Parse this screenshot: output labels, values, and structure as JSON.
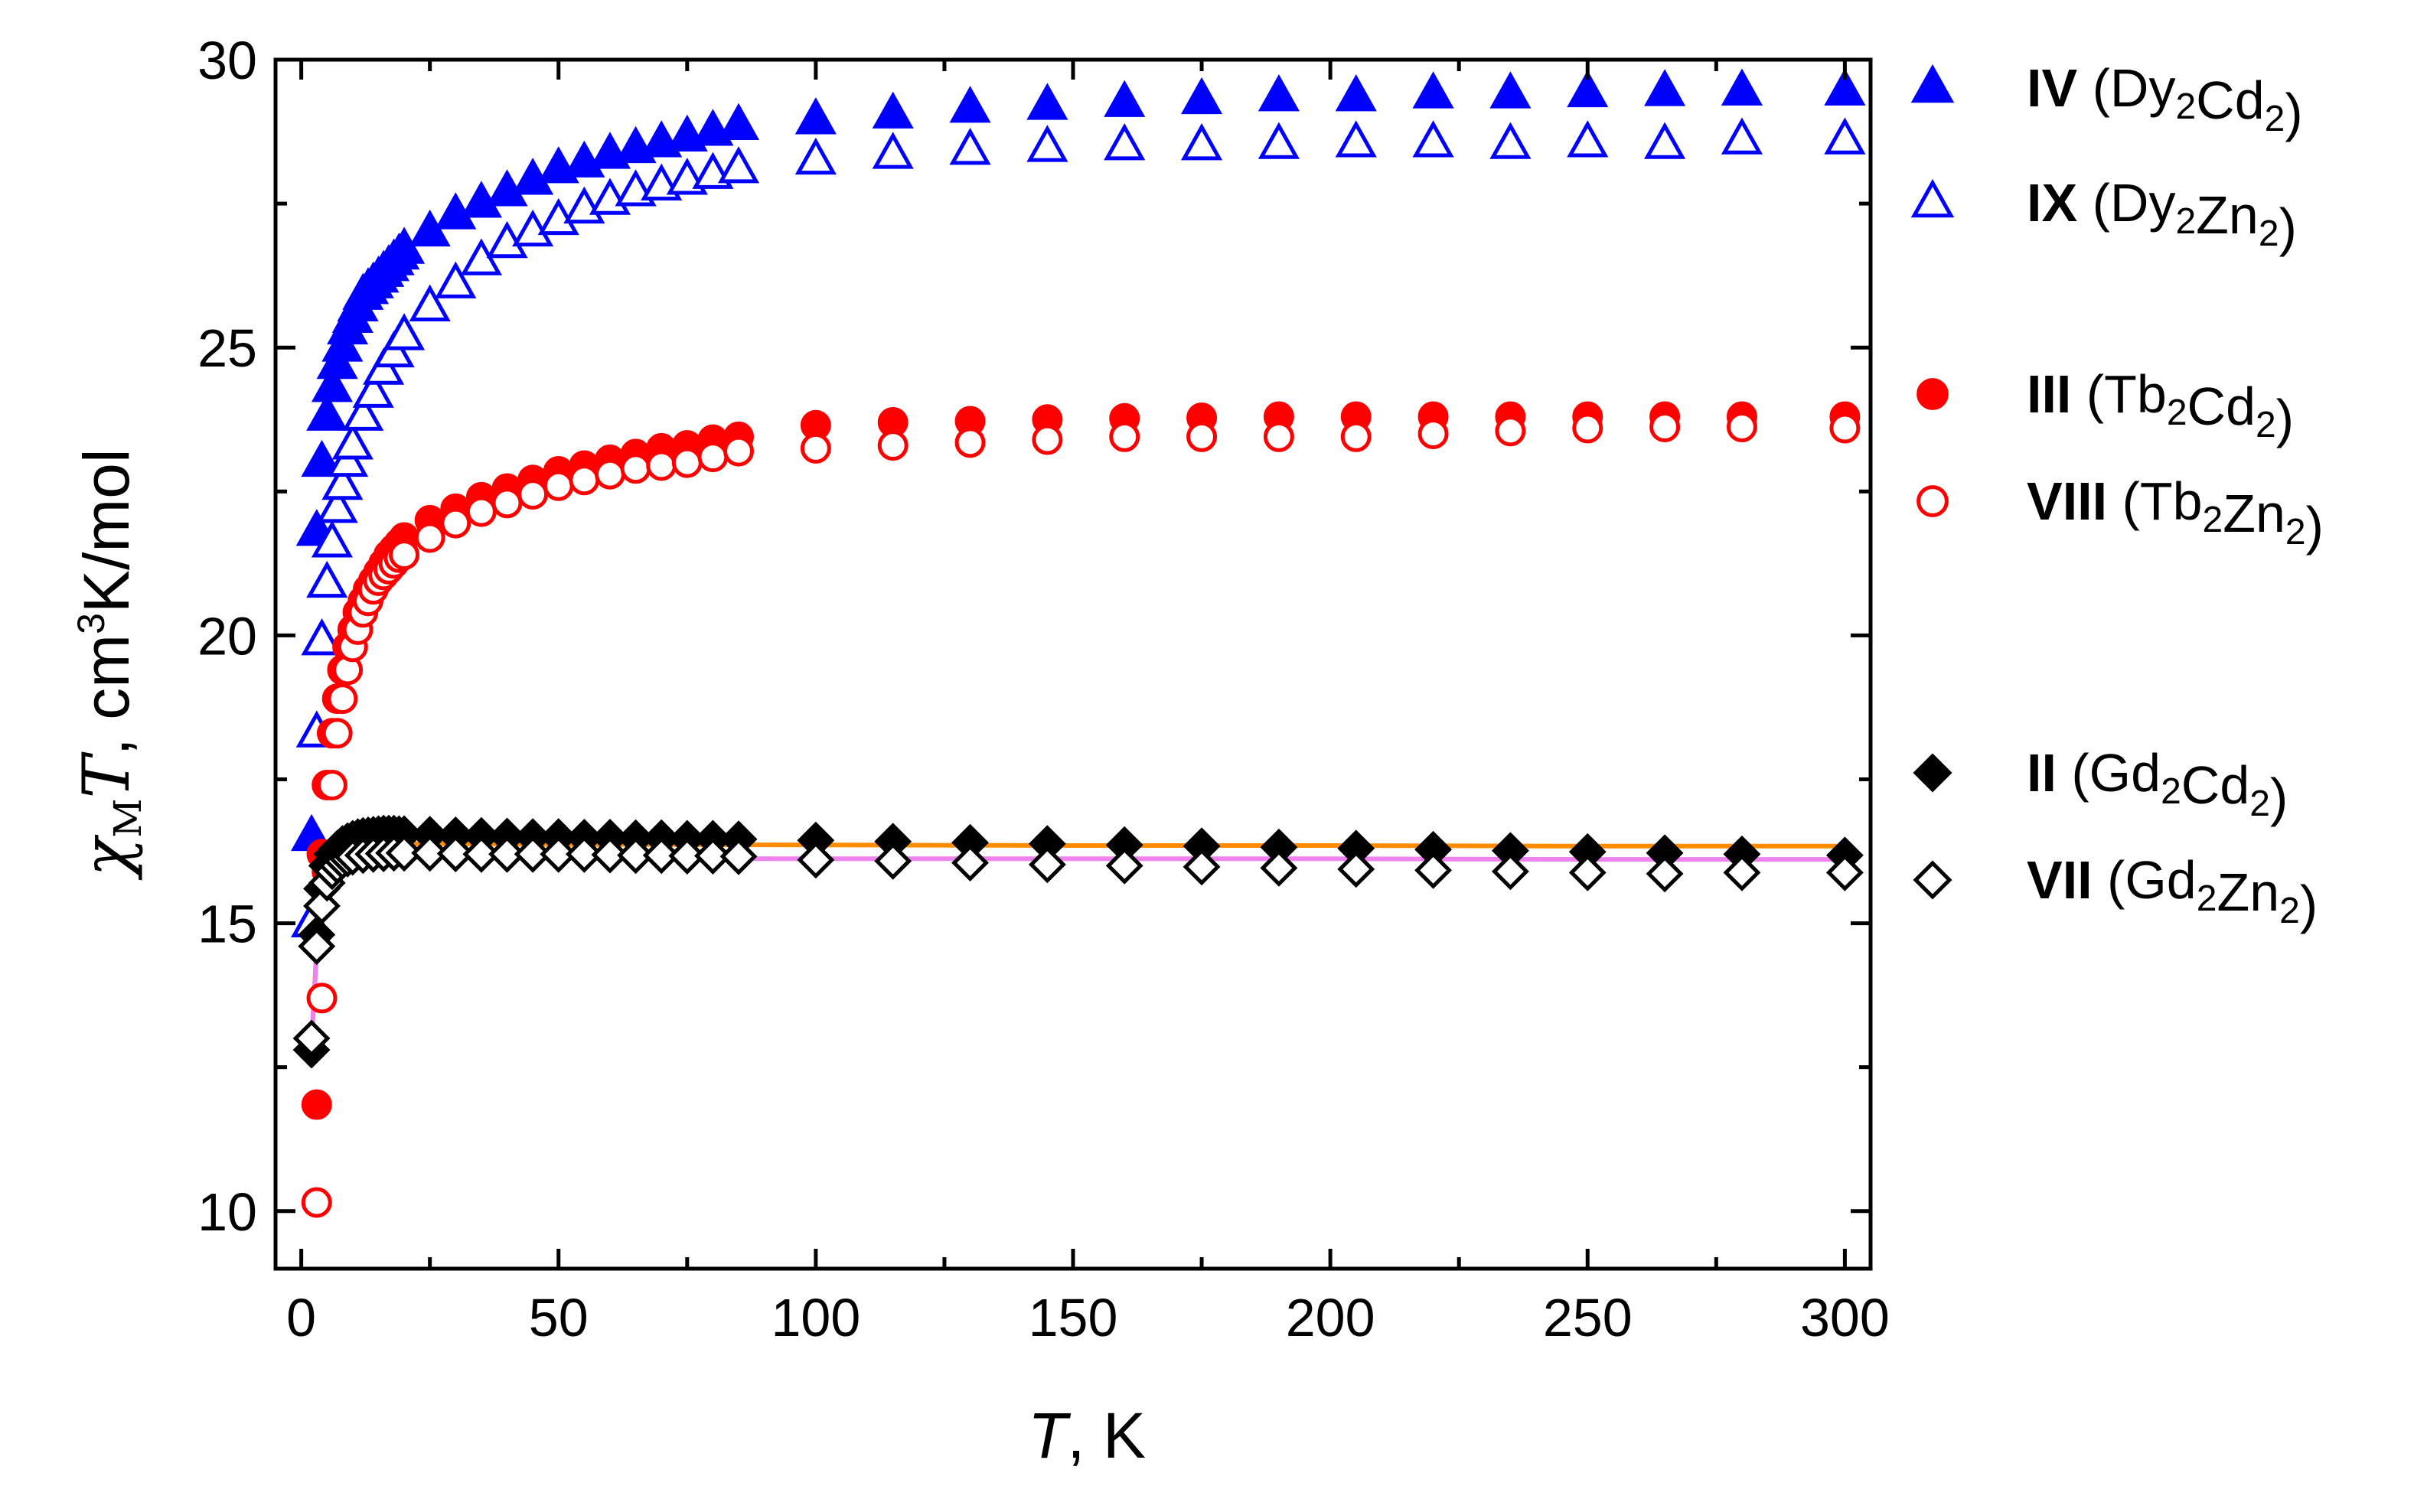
{
  "chart_data": {
    "type": "scatter",
    "title": "",
    "xlabel": {
      "var": "T",
      "unit": ", K"
    },
    "ylabel": {
      "chi": "χ",
      "sub": "M",
      "var": "T",
      "unit1": ", cm",
      "sup": "3",
      "unit2": "K/mol"
    },
    "xlim": [
      -5,
      305
    ],
    "ylim": [
      9,
      30
    ],
    "xticks": [
      0,
      50,
      100,
      150,
      200,
      250,
      300
    ],
    "xtick_labels": [
      "0",
      "50",
      "100",
      "150",
      "200",
      "250",
      "300"
    ],
    "yticks": [
      10,
      15,
      20,
      25,
      30
    ],
    "ytick_labels": [
      "10",
      "15",
      "20",
      "25",
      "30"
    ],
    "x_minor_ticks": [
      25,
      75,
      125,
      175,
      225,
      275
    ],
    "y_minor_ticks": [
      12.5,
      17.5,
      22.5,
      27.5
    ],
    "legend_position": "right",
    "series": [
      {
        "id": "IV",
        "roman": "IV",
        "formula": "Dy2Cd2",
        "parts": [
          [
            "Dy",
            "2"
          ],
          [
            "Cd",
            "2"
          ]
        ],
        "marker": "triangle",
        "filled": true,
        "color": "#0000ff",
        "x": [
          2,
          3,
          4,
          5,
          6,
          7,
          8,
          9,
          10,
          11,
          12,
          13,
          14,
          15,
          16,
          17,
          18,
          19,
          20,
          25,
          30,
          35,
          40,
          45,
          50,
          55,
          60,
          65,
          70,
          75,
          80,
          85,
          100,
          115,
          130,
          145,
          160,
          175,
          190,
          205,
          220,
          235,
          250,
          265,
          280,
          300
        ],
        "y": [
          16.5,
          21.8,
          23.0,
          23.8,
          24.3,
          24.7,
          25.0,
          25.3,
          25.5,
          25.7,
          25.9,
          26.0,
          26.1,
          26.2,
          26.3,
          26.4,
          26.5,
          26.6,
          26.7,
          27.0,
          27.3,
          27.5,
          27.7,
          27.9,
          28.1,
          28.2,
          28.35,
          28.45,
          28.55,
          28.65,
          28.75,
          28.85,
          28.95,
          29.05,
          29.15,
          29.2,
          29.25,
          29.3,
          29.35,
          29.35,
          29.4,
          29.4,
          29.42,
          29.44,
          29.45,
          29.45
        ]
      },
      {
        "id": "IX",
        "roman": "IX",
        "formula": "Dy2Zn2",
        "parts": [
          [
            "Dy",
            "2"
          ],
          [
            "Zn",
            "2"
          ]
        ],
        "marker": "triangle",
        "filled": false,
        "color": "#0000ff",
        "x": [
          2,
          3,
          4,
          5,
          6,
          7,
          8,
          9,
          10,
          12,
          14,
          16,
          18,
          20,
          25,
          30,
          35,
          40,
          45,
          50,
          55,
          60,
          65,
          70,
          75,
          80,
          85,
          100,
          115,
          130,
          145,
          160,
          175,
          190,
          205,
          220,
          235,
          250,
          265,
          280,
          300
        ],
        "y": [
          15.0,
          18.3,
          19.9,
          20.9,
          21.6,
          22.2,
          22.6,
          23.0,
          23.3,
          23.8,
          24.2,
          24.6,
          24.9,
          25.2,
          25.7,
          26.1,
          26.5,
          26.8,
          27.0,
          27.2,
          27.4,
          27.55,
          27.7,
          27.8,
          27.9,
          28.0,
          28.1,
          28.25,
          28.35,
          28.42,
          28.47,
          28.5,
          28.5,
          28.52,
          28.55,
          28.55,
          28.52,
          28.55,
          28.52,
          28.6,
          28.6
        ]
      },
      {
        "id": "III",
        "roman": "III",
        "formula": "Tb2Cd2",
        "parts": [
          [
            "Tb",
            "2"
          ],
          [
            "Cd",
            "2"
          ]
        ],
        "marker": "circle",
        "filled": true,
        "color": "#ff0000",
        "x": [
          3,
          4,
          5,
          6,
          7,
          8,
          9,
          10,
          11,
          12,
          13,
          14,
          15,
          16,
          17,
          18,
          19,
          20,
          25,
          30,
          35,
          40,
          45,
          50,
          55,
          60,
          65,
          70,
          75,
          80,
          85,
          100,
          115,
          130,
          145,
          160,
          175,
          190,
          205,
          220,
          235,
          250,
          265,
          280,
          300
        ],
        "y": [
          11.85,
          16.2,
          17.4,
          18.3,
          18.9,
          19.4,
          19.8,
          20.1,
          20.4,
          20.6,
          20.8,
          20.95,
          21.1,
          21.25,
          21.4,
          21.5,
          21.6,
          21.7,
          22.0,
          22.2,
          22.4,
          22.55,
          22.7,
          22.85,
          22.95,
          23.05,
          23.15,
          23.25,
          23.3,
          23.4,
          23.45,
          23.65,
          23.7,
          23.72,
          23.75,
          23.77,
          23.78,
          23.8,
          23.8,
          23.8,
          23.8,
          23.8,
          23.8,
          23.8,
          23.8
        ]
      },
      {
        "id": "VIII",
        "roman": "VIII",
        "formula": "Tb2Zn2",
        "parts": [
          [
            "Tb",
            "2"
          ],
          [
            "Zn",
            "2"
          ]
        ],
        "marker": "circle",
        "filled": false,
        "color": "#ff0000",
        "x": [
          3,
          4,
          5,
          6,
          7,
          8,
          9,
          10,
          11,
          12,
          13,
          14,
          15,
          16,
          17,
          18,
          19,
          20,
          25,
          30,
          35,
          40,
          45,
          50,
          55,
          60,
          65,
          70,
          75,
          80,
          85,
          100,
          115,
          130,
          145,
          160,
          175,
          190,
          205,
          220,
          235,
          250,
          265,
          280,
          300
        ],
        "y": [
          10.15,
          13.7,
          15.9,
          17.4,
          18.3,
          18.9,
          19.4,
          19.8,
          20.1,
          20.4,
          20.6,
          20.8,
          20.95,
          21.05,
          21.15,
          21.25,
          21.35,
          21.4,
          21.7,
          21.95,
          22.15,
          22.3,
          22.45,
          22.6,
          22.7,
          22.8,
          22.9,
          22.95,
          23.0,
          23.1,
          23.2,
          23.25,
          23.3,
          23.35,
          23.4,
          23.45,
          23.45,
          23.45,
          23.45,
          23.5,
          23.55,
          23.6,
          23.62,
          23.62,
          23.6
        ]
      },
      {
        "id": "II",
        "roman": "II",
        "formula": "Gd2Cd2",
        "parts": [
          [
            "Gd",
            "2"
          ],
          [
            "Cd",
            "2"
          ]
        ],
        "marker": "diamond",
        "filled": true,
        "color": "#000000",
        "x": [
          2,
          3,
          4,
          5,
          6,
          7,
          8,
          9,
          10,
          11,
          12,
          13,
          14,
          15,
          16,
          17,
          18,
          19,
          20,
          25,
          30,
          35,
          40,
          45,
          50,
          55,
          60,
          65,
          70,
          75,
          80,
          85,
          100,
          115,
          130,
          145,
          160,
          175,
          190,
          205,
          220,
          235,
          250,
          265,
          280,
          300
        ],
        "y": [
          12.8,
          14.8,
          15.6,
          16.0,
          16.2,
          16.3,
          16.38,
          16.43,
          16.47,
          16.5,
          16.52,
          16.53,
          16.54,
          16.55,
          16.56,
          16.56,
          16.56,
          16.55,
          16.55,
          16.54,
          16.53,
          16.52,
          16.51,
          16.5,
          16.5,
          16.49,
          16.49,
          16.48,
          16.48,
          16.47,
          16.47,
          16.46,
          16.44,
          16.42,
          16.4,
          16.38,
          16.36,
          16.34,
          16.32,
          16.3,
          16.28,
          16.26,
          16.24,
          16.22,
          16.2,
          16.18
        ]
      },
      {
        "id": "VII",
        "roman": "VII",
        "formula": "Gd2Zn2",
        "parts": [
          [
            "Gd",
            "2"
          ],
          [
            "Zn",
            "2"
          ]
        ],
        "marker": "diamond",
        "filled": false,
        "color": "#000000",
        "x": [
          2,
          3,
          4,
          5,
          6,
          7,
          8,
          9,
          10,
          12,
          14,
          16,
          18,
          20,
          25,
          30,
          35,
          40,
          45,
          50,
          55,
          60,
          65,
          70,
          75,
          80,
          85,
          100,
          115,
          130,
          145,
          160,
          175,
          190,
          205,
          220,
          235,
          250,
          265,
          280,
          300
        ],
        "y": [
          13.0,
          14.6,
          15.3,
          15.7,
          15.9,
          16.0,
          16.08,
          16.12,
          16.15,
          16.18,
          16.2,
          16.21,
          16.22,
          16.22,
          16.22,
          16.21,
          16.2,
          16.2,
          16.2,
          16.2,
          16.2,
          16.19,
          16.18,
          16.18,
          16.17,
          16.17,
          16.16,
          16.1,
          16.08,
          16.05,
          16.02,
          16.0,
          15.98,
          15.96,
          15.94,
          15.92,
          15.9,
          15.88,
          15.86,
          15.88,
          15.88
        ]
      }
    ],
    "fits": [
      {
        "name": "fit-II",
        "color": "#ff8c00",
        "x": [
          2,
          3,
          4,
          5,
          6,
          7,
          8,
          10,
          12,
          15,
          20,
          30,
          50,
          100,
          150,
          200,
          250,
          300
        ],
        "y": [
          12.9,
          14.6,
          15.5,
          15.95,
          16.15,
          16.25,
          16.3,
          16.35,
          16.37,
          16.38,
          16.38,
          16.38,
          16.37,
          16.36,
          16.35,
          16.35,
          16.34,
          16.34
        ]
      },
      {
        "name": "fit-VII",
        "color": "#ee82ee",
        "x": [
          2,
          3,
          4,
          5,
          6,
          7,
          8,
          10,
          12,
          15,
          20,
          30,
          50,
          100,
          150,
          200,
          250,
          300
        ],
        "y": [
          13.0,
          14.5,
          15.3,
          15.7,
          15.9,
          16.0,
          16.05,
          16.1,
          16.12,
          16.13,
          16.14,
          16.14,
          16.13,
          16.12,
          16.12,
          16.12,
          16.11,
          16.11
        ]
      }
    ],
    "legend_groups": [
      [
        "IV",
        "IX"
      ],
      [
        "III",
        "VIII"
      ],
      [
        "II",
        "VII"
      ]
    ]
  }
}
